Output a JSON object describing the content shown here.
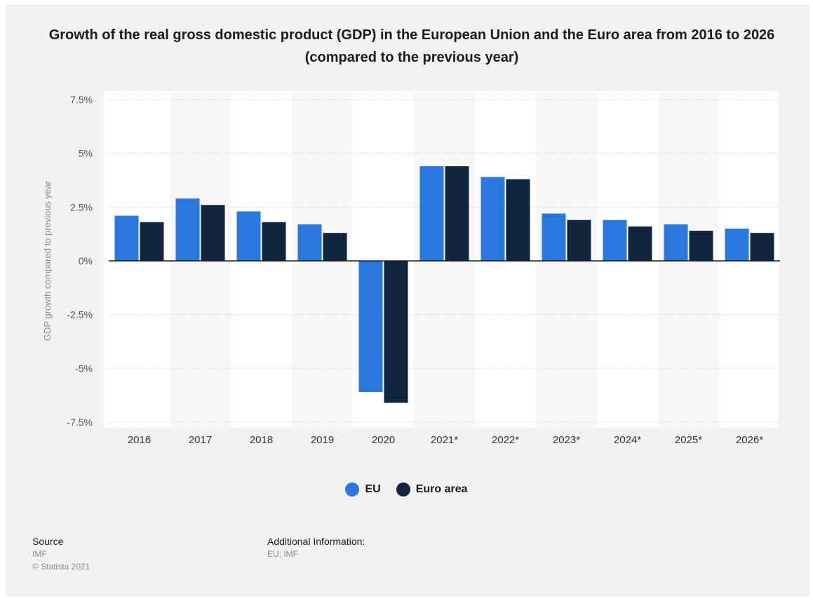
{
  "title": "Growth of the real gross domestic product (GDP) in the European Union and the Euro area from 2016 to 2026 (compared to the previous year)",
  "legend": [
    {
      "label": "EU",
      "color": "#2a77de"
    },
    {
      "label": "Euro area",
      "color": "#10263f"
    }
  ],
  "footer": {
    "source_heading": "Source",
    "source_lines": [
      "IMF",
      "© Statista 2021"
    ],
    "additional_heading": "Additional Information:",
    "additional_lines": [
      "EU; IMF"
    ]
  },
  "chart_data": {
    "type": "bar",
    "title": "Growth of the real gross domestic product (GDP) in the European Union and the Euro area from 2016 to 2026 (compared to the previous year)",
    "xlabel": "",
    "ylabel": "GDP growth compared to previous year",
    "categories": [
      "2016",
      "2017",
      "2018",
      "2019",
      "2020",
      "2021*",
      "2022*",
      "2023*",
      "2024*",
      "2025*",
      "2026*"
    ],
    "series": [
      {
        "name": "EU",
        "color": "#2a77de",
        "values": [
          2.1,
          2.9,
          2.3,
          1.7,
          -6.1,
          4.4,
          3.9,
          2.2,
          1.9,
          1.7,
          1.5
        ]
      },
      {
        "name": "Euro area",
        "color": "#10263f",
        "values": [
          1.8,
          2.6,
          1.8,
          1.3,
          -6.6,
          4.4,
          3.8,
          1.9,
          1.6,
          1.4,
          1.3
        ]
      }
    ],
    "ylim": [
      -7.5,
      7.5
    ],
    "yticks": [
      7.5,
      5,
      2.5,
      0,
      -2.5,
      -5,
      -7.5
    ],
    "ytick_labels": [
      "7.5%",
      "5%",
      "2.5%",
      "0%",
      "-2.5%",
      "-5%",
      "-7.5%"
    ],
    "grid": true,
    "legend_position": "bottom"
  }
}
